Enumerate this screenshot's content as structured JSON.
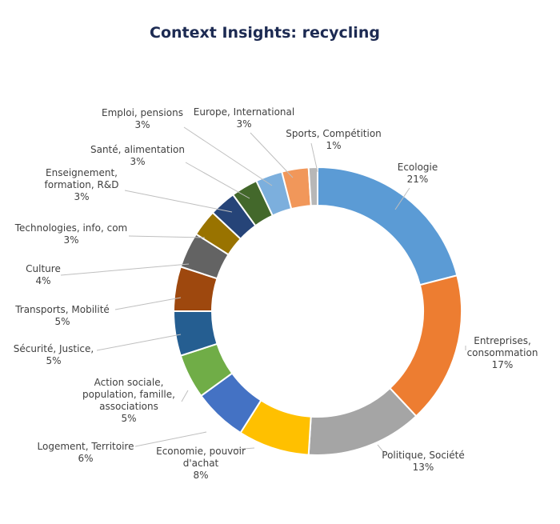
{
  "title": "Context Insights: recycling",
  "chart_data": {
    "type": "donut",
    "title": "Context Insights: recycling",
    "legend": "none",
    "slices": [
      {
        "label": "Ecologie",
        "value_label": "21%",
        "value": 21,
        "color": "#5b9bd5"
      },
      {
        "label": "Entreprises, consommation",
        "value_label": "17%",
        "value": 17,
        "color": "#ed7d31"
      },
      {
        "label": "Politique, Société",
        "value_label": "13%",
        "value": 13,
        "color": "#a5a5a5"
      },
      {
        "label": "Economie, pouvoir d'achat",
        "value_label": "8%",
        "value": 8,
        "color": "#ffc000"
      },
      {
        "label": "Logement, Territoire",
        "value_label": "6%",
        "value": 6,
        "color": "#4472c4"
      },
      {
        "label": "Action sociale, population, famille, associations",
        "value_label": "5%",
        "value": 5,
        "color": "#70ad47"
      },
      {
        "label": "Sécurité, Justice,",
        "value_label": "5%",
        "value": 5,
        "color": "#255e91"
      },
      {
        "label": "Transports, Mobilité",
        "value_label": "5%",
        "value": 5,
        "color": "#9e480e"
      },
      {
        "label": "Culture",
        "value_label": "4%",
        "value": 4,
        "color": "#636363"
      },
      {
        "label": "Technologies, info, com",
        "value_label": "3%",
        "value": 3,
        "color": "#997300"
      },
      {
        "label": "Enseignement, formation, R&D",
        "value_label": "3%",
        "value": 3,
        "color": "#264478"
      },
      {
        "label": "Santé, alimentation",
        "value_label": "3%",
        "value": 3,
        "color": "#43682b"
      },
      {
        "label": "Emploi, pensions",
        "value_label": "3%",
        "value": 3,
        "color": "#7cafdd"
      },
      {
        "label": "Europe, International",
        "value_label": "3%",
        "value": 3,
        "color": "#f1975a"
      },
      {
        "label": "Sports, Compétition",
        "value_label": "1%",
        "value": 1,
        "color": "#b7b7b7"
      }
    ]
  }
}
